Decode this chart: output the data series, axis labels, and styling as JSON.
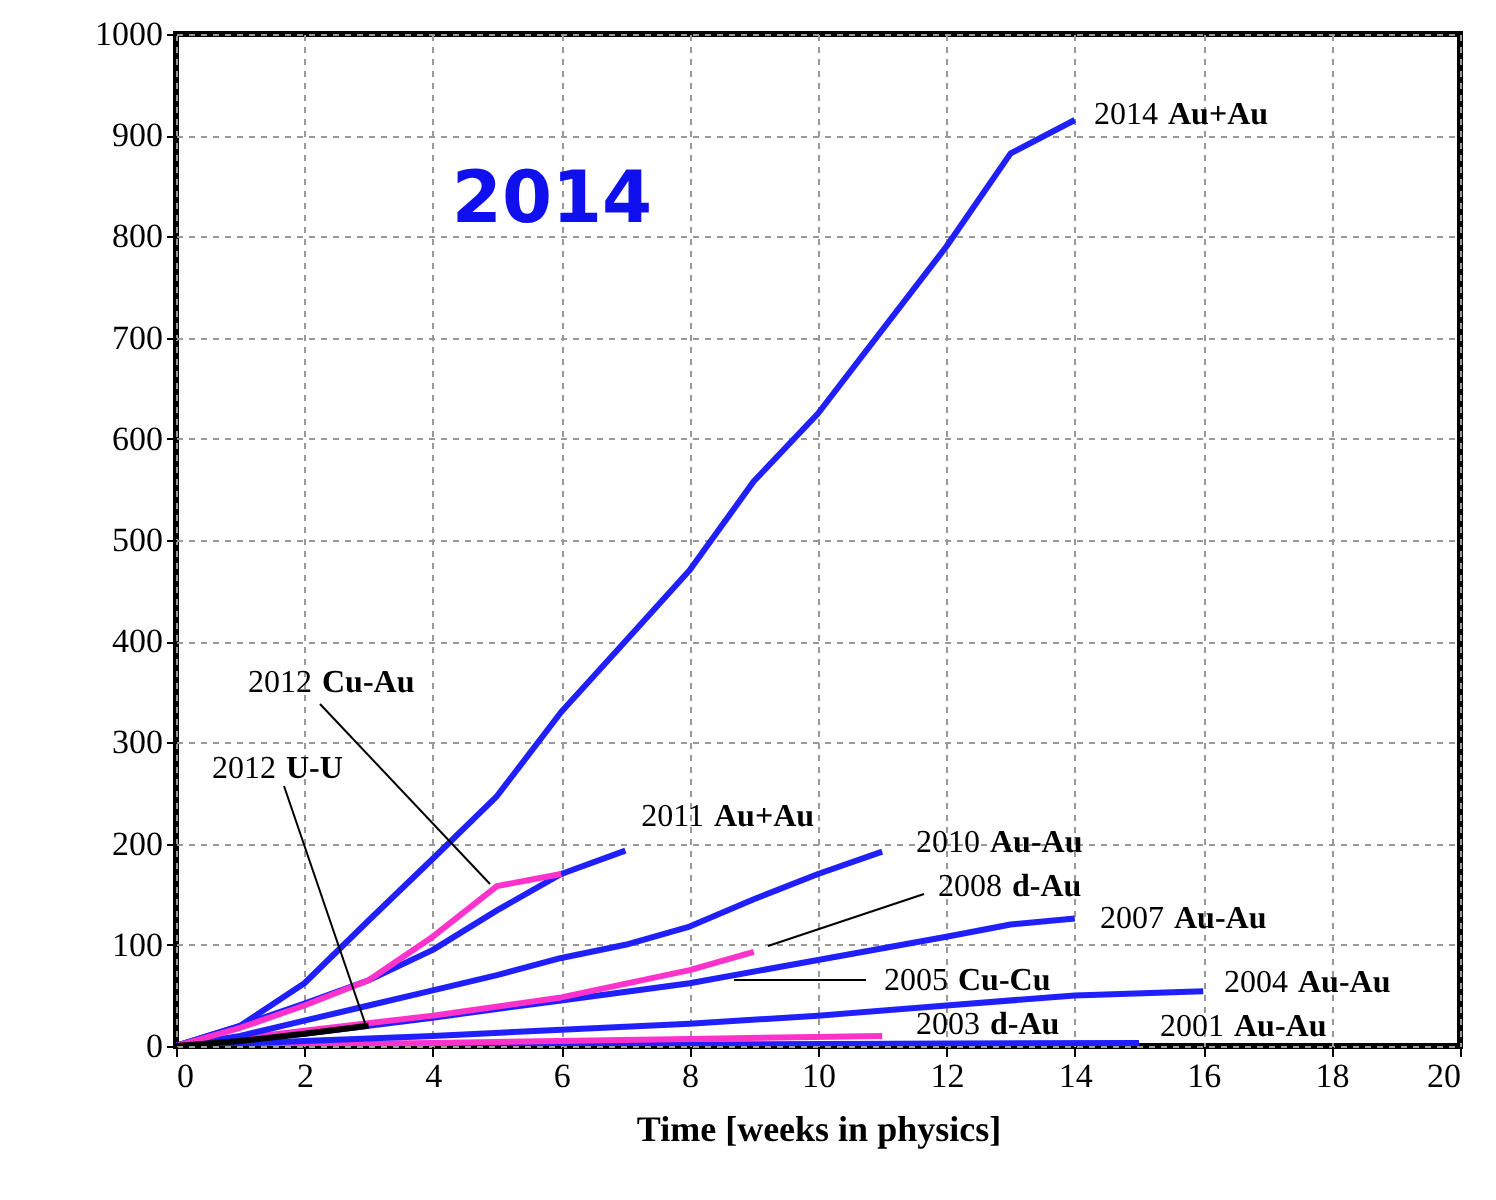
{
  "chart_data": {
    "type": "line",
    "xlabel": "Time [weeks in physics]",
    "xlim": [
      0,
      20
    ],
    "xticks": [
      0,
      2,
      4,
      6,
      8,
      10,
      12,
      14,
      16,
      18,
      20
    ],
    "ylim": [
      0,
      1000
    ],
    "yticks": [
      0,
      100,
      200,
      300,
      400,
      500,
      600,
      700,
      800,
      900,
      1000
    ],
    "grid": true,
    "legend": false,
    "line_style": "solid",
    "marker": "none",
    "annotations": [
      "2014",
      "2005 Cu-Cu"
    ],
    "series": [
      {
        "name": "2014 Au+Au",
        "color": "#1f1fff",
        "x": [
          0,
          1,
          2,
          3,
          4,
          5,
          6,
          7,
          8,
          9,
          10,
          12,
          13,
          14
        ],
        "values": [
          0,
          20,
          62,
          124,
          185,
          247,
          330,
          400,
          470,
          558,
          625,
          790,
          882,
          915
        ]
      },
      {
        "name": "2011 Au+Au",
        "color": "#1f1fff",
        "x": [
          0,
          1,
          2,
          3,
          4,
          5,
          6,
          7
        ],
        "values": [
          0,
          20,
          42,
          65,
          95,
          134,
          170,
          193
        ]
      },
      {
        "name": "2012 Cu-Au",
        "color": "#ff33cc",
        "x": [
          0,
          1,
          2,
          3,
          4,
          5,
          6
        ],
        "values": [
          0,
          18,
          40,
          65,
          108,
          158,
          170
        ]
      },
      {
        "name": "2012 U-U",
        "color": "#000000",
        "x": [
          0,
          1,
          2,
          3
        ],
        "values": [
          0,
          5,
          12,
          20
        ]
      },
      {
        "name": "2010 Au-Au",
        "color": "#1f1fff",
        "x": [
          0,
          1,
          2,
          3,
          4,
          5,
          6,
          7,
          8,
          9,
          10,
          11
        ],
        "values": [
          0,
          10,
          25,
          40,
          55,
          70,
          87,
          100,
          118,
          145,
          170,
          192
        ]
      },
      {
        "name": "2008 d-Au",
        "color": "#ff33cc",
        "x": [
          0,
          2,
          4,
          6,
          8,
          9
        ],
        "values": [
          0,
          15,
          30,
          48,
          75,
          93
        ]
      },
      {
        "name": "2007 Au-Au",
        "color": "#1f1fff",
        "x": [
          0,
          2,
          4,
          6,
          8,
          10,
          12,
          13,
          14
        ],
        "values": [
          0,
          12,
          28,
          45,
          62,
          85,
          108,
          120,
          126
        ]
      },
      {
        "name": "2004 Au-Au",
        "color": "#1f1fff",
        "x": [
          0,
          2,
          4,
          6,
          8,
          10,
          12,
          14,
          16
        ],
        "values": [
          0,
          5,
          10,
          16,
          22,
          30,
          40,
          50,
          54
        ]
      },
      {
        "name": "2003 d-Au",
        "color": "#ff33cc",
        "x": [
          0,
          4,
          8,
          11
        ],
        "values": [
          0,
          3,
          7,
          10
        ]
      },
      {
        "name": "2001 Au-Au",
        "color": "#1f1fff",
        "x": [
          0,
          15
        ],
        "values": [
          0,
          3
        ]
      }
    ]
  }
}
